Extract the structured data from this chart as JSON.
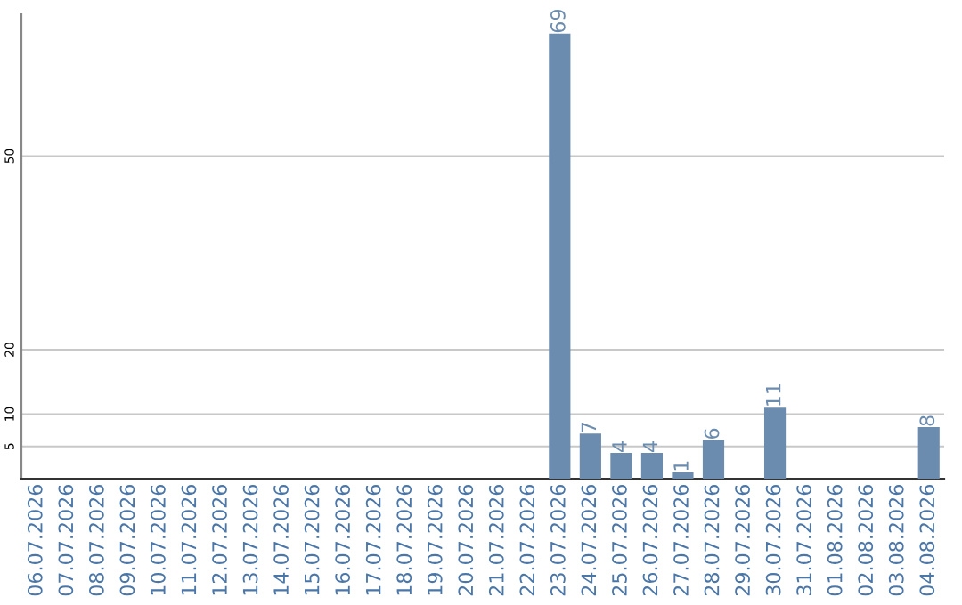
{
  "chart_data": {
    "type": "bar",
    "categories": [
      "06.07.2026",
      "07.07.2026",
      "08.07.2026",
      "09.07.2026",
      "10.07.2026",
      "11.07.2026",
      "12.07.2026",
      "13.07.2026",
      "14.07.2026",
      "15.07.2026",
      "16.07.2026",
      "17.07.2026",
      "18.07.2026",
      "19.07.2026",
      "20.07.2026",
      "21.07.2026",
      "22.07.2026",
      "23.07.2026",
      "24.07.2026",
      "25.07.2026",
      "26.07.2026",
      "27.07.2026",
      "28.07.2026",
      "29.07.2026",
      "30.07.2026",
      "31.07.2026",
      "01.08.2026",
      "02.08.2026",
      "03.08.2026",
      "04.08.2026"
    ],
    "values": [
      0,
      0,
      0,
      0,
      0,
      0,
      0,
      0,
      0,
      0,
      0,
      0,
      0,
      0,
      0,
      0,
      0,
      69,
      7,
      4,
      4,
      1,
      6,
      0,
      11,
      0,
      0,
      0,
      0,
      8
    ],
    "value_labels": [
      null,
      null,
      null,
      null,
      null,
      null,
      null,
      null,
      null,
      null,
      null,
      null,
      null,
      null,
      null,
      null,
      null,
      "69",
      "7",
      "4",
      "4",
      "1",
      "6",
      null,
      "11",
      null,
      null,
      null,
      null,
      "8"
    ],
    "color": "#6b8cae",
    "ylim": [
      0,
      72
    ],
    "yticks": [
      5,
      10,
      20,
      50
    ],
    "grid": "y"
  }
}
